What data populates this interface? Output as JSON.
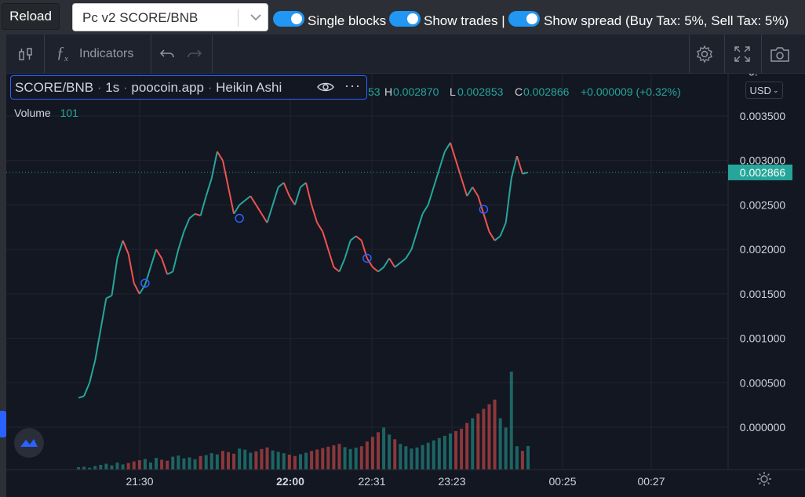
{
  "topbar": {
    "reload_label": "Reload",
    "pair_value": "Pc v2 SCORE/BNB",
    "single_blocks_label": "Single blocks",
    "show_trades_label": "Show trades |",
    "show_spread_label": "Show spread (Buy Tax: 5%, Sell Tax: 5%)",
    "toggle_color": "#2196f3"
  },
  "toolbar": {
    "indicators_label": "Indicators",
    "icons": [
      "candles-icon",
      "fx-icon",
      "undo-icon",
      "redo-icon",
      "gear-icon",
      "fullscreen-icon",
      "camera-icon"
    ]
  },
  "legend": {
    "symbol": "SCORE/BNB",
    "interval": "1s",
    "source": "poocoin.app",
    "style": "Heikin Ashi",
    "o_partial": "53",
    "h_label": "H",
    "h_value": "0.002870",
    "l_label": "L",
    "l_value": "0.002853",
    "c_label": "C",
    "c_value": "0.002866",
    "change": "+0.000009 (+0.32%)",
    "volume_label": "Volume",
    "volume_value": "101"
  },
  "currency_label": "USD",
  "current_price_label": "0.002866",
  "colors": {
    "up": "#26a69a",
    "down": "#ef5350",
    "text": "#d1d4dc",
    "muted": "#9598a1"
  },
  "chart_data": {
    "type": "line",
    "title": "",
    "y_ticks": [
      "0.000000",
      "0.000500",
      "0.001000",
      "0.001500",
      "0.002000",
      "0.002500",
      "0.003000",
      "0.003500"
    ],
    "y_top_partial": "0.",
    "x_ticks": [
      "21:30",
      "22:00",
      "22:31",
      "23:23",
      "00:25",
      "00:27"
    ],
    "ylim": [
      0.0,
      0.004
    ],
    "grid": true,
    "series": [
      {
        "name": "SCORE/BNB",
        "values": [
          0.00033,
          0.00035,
          0.0005,
          0.00075,
          0.0011,
          0.00145,
          0.00148,
          0.0019,
          0.0021,
          0.00195,
          0.00162,
          0.0015,
          0.0016,
          0.0018,
          0.002,
          0.0019,
          0.00172,
          0.00175,
          0.002,
          0.0022,
          0.00235,
          0.0024,
          0.00238,
          0.0026,
          0.0028,
          0.0031,
          0.003,
          0.0027,
          0.0024,
          0.0025,
          0.00255,
          0.0026,
          0.0025,
          0.0024,
          0.0023,
          0.0025,
          0.0027,
          0.00275,
          0.0026,
          0.0025,
          0.0027,
          0.00275,
          0.0025,
          0.0023,
          0.0022,
          0.002,
          0.0018,
          0.00175,
          0.0019,
          0.0021,
          0.00215,
          0.0021,
          0.0019,
          0.0018,
          0.00175,
          0.0018,
          0.0019,
          0.0018,
          0.00185,
          0.0019,
          0.002,
          0.0022,
          0.0024,
          0.0025,
          0.0027,
          0.0029,
          0.0031,
          0.0032,
          0.003,
          0.0028,
          0.0026,
          0.0027,
          0.0026,
          0.0024,
          0.0022,
          0.0021,
          0.00215,
          0.0023,
          0.0028,
          0.00305,
          0.00285,
          0.002866
        ]
      },
      {
        "name": "Volume",
        "values": [
          10,
          12,
          8,
          15,
          20,
          25,
          18,
          30,
          22,
          28,
          35,
          40,
          45,
          30,
          50,
          42,
          38,
          55,
          60,
          48,
          52,
          44,
          58,
          62,
          70,
          65,
          80,
          75,
          68,
          90,
          85,
          72,
          78,
          88,
          95,
          82,
          76,
          70,
          64,
          58,
          66,
          72,
          80,
          86,
          92,
          98,
          104,
          110,
          96,
          88,
          94,
          100,
          120,
          140,
          160,
          180,
          150,
          130,
          110,
          100,
          90,
          95,
          105,
          115,
          125,
          135,
          145,
          155,
          165,
          175,
          200,
          220,
          240,
          260,
          280,
          300,
          220,
          180,
          420,
          100,
          80,
          101
        ]
      }
    ],
    "markers": [
      {
        "x_index": 12,
        "y": 0.00162
      },
      {
        "x_index": 29,
        "y": 0.00235
      },
      {
        "x_index": 52,
        "y": 0.0019
      },
      {
        "x_index": 73,
        "y": 0.00245
      }
    ]
  }
}
